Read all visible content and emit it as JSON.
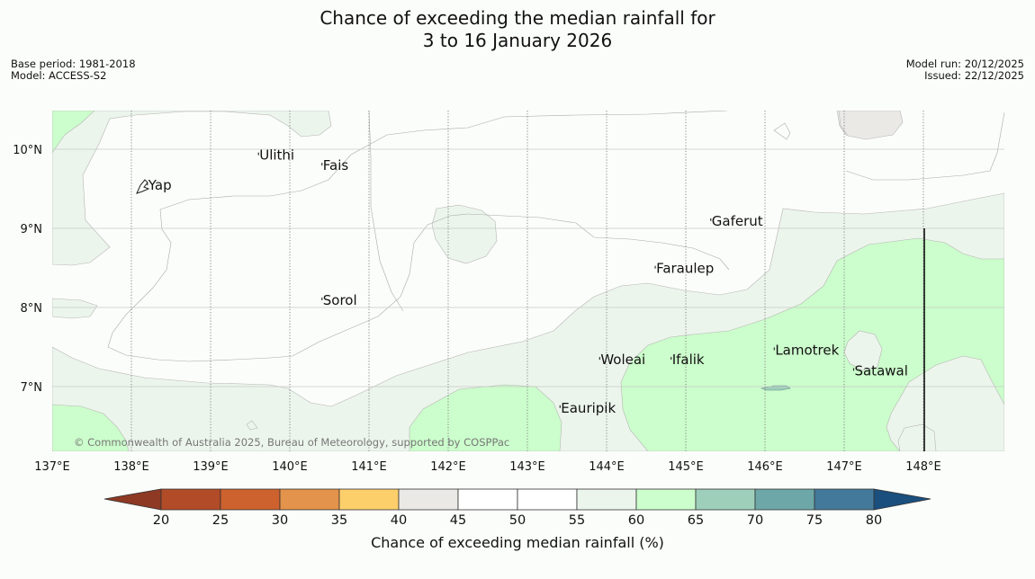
{
  "title": {
    "line1": "Chance of exceeding the median rainfall for",
    "line2": "3 to 16 January 2026"
  },
  "info": {
    "base_period": "Base period: 1981-2018",
    "model": "Model: ACCESS-S2",
    "model_run": "Model run: 20/12/2025",
    "issued": "Issued: 22/12/2025"
  },
  "map": {
    "lon_range": [
      137,
      149
    ],
    "lat_range": [
      6.2,
      10.5
    ],
    "lon_ticks": [
      "137°E",
      "138°E",
      "139°E",
      "140°E",
      "141°E",
      "142°E",
      "143°E",
      "144°E",
      "145°E",
      "146°E",
      "147°E",
      "148°E"
    ],
    "lat_ticks": [
      "10°N",
      "9°N",
      "8°N",
      "7°N"
    ],
    "places": [
      {
        "name": "Yap",
        "lon": 138.2,
        "lat": 9.5
      },
      {
        "name": "Ulithi",
        "lon": 139.6,
        "lat": 9.88
      },
      {
        "name": "Fais",
        "lon": 140.4,
        "lat": 9.75
      },
      {
        "name": "Gaferut",
        "lon": 145.3,
        "lat": 9.05
      },
      {
        "name": "Faraulep",
        "lon": 144.6,
        "lat": 8.45
      },
      {
        "name": "Sorol",
        "lon": 140.4,
        "lat": 8.05
      },
      {
        "name": "Woleai",
        "lon": 143.9,
        "lat": 7.3
      },
      {
        "name": "Ifalik",
        "lon": 144.8,
        "lat": 7.3
      },
      {
        "name": "Lamotrek",
        "lon": 146.1,
        "lat": 7.42
      },
      {
        "name": "Satawal",
        "lon": 147.1,
        "lat": 7.16
      },
      {
        "name": "Eauripik",
        "lon": 143.4,
        "lat": 6.69
      }
    ],
    "copyright": "© Commonwealth of Australia 2025, Bureau of Meteorology, supported by COSPPac",
    "colors": {
      "cat_40_45": "#ebe9e6",
      "cat_55_60": "#ecf5ec",
      "cat_60_65": "#ccfdcc",
      "cat_65_70": "#9ecfbb"
    }
  },
  "colorbar": {
    "label": "Chance of exceeding median rainfall (%)",
    "ticks": [
      "20",
      "25",
      "30",
      "35",
      "40",
      "45",
      "50",
      "55",
      "60",
      "65",
      "70",
      "75",
      "80"
    ],
    "colors": [
      "#b24b28",
      "#cd622f",
      "#e3934b",
      "#fdcf6b",
      "#ebe9e6",
      "#ffffff",
      "#ffffff",
      "#ecf5ec",
      "#ccfdcc",
      "#9ecfbb",
      "#6ea7a7",
      "#437a9b"
    ],
    "low_extend": "#8e3924",
    "high_extend": "#1a4f7e"
  }
}
